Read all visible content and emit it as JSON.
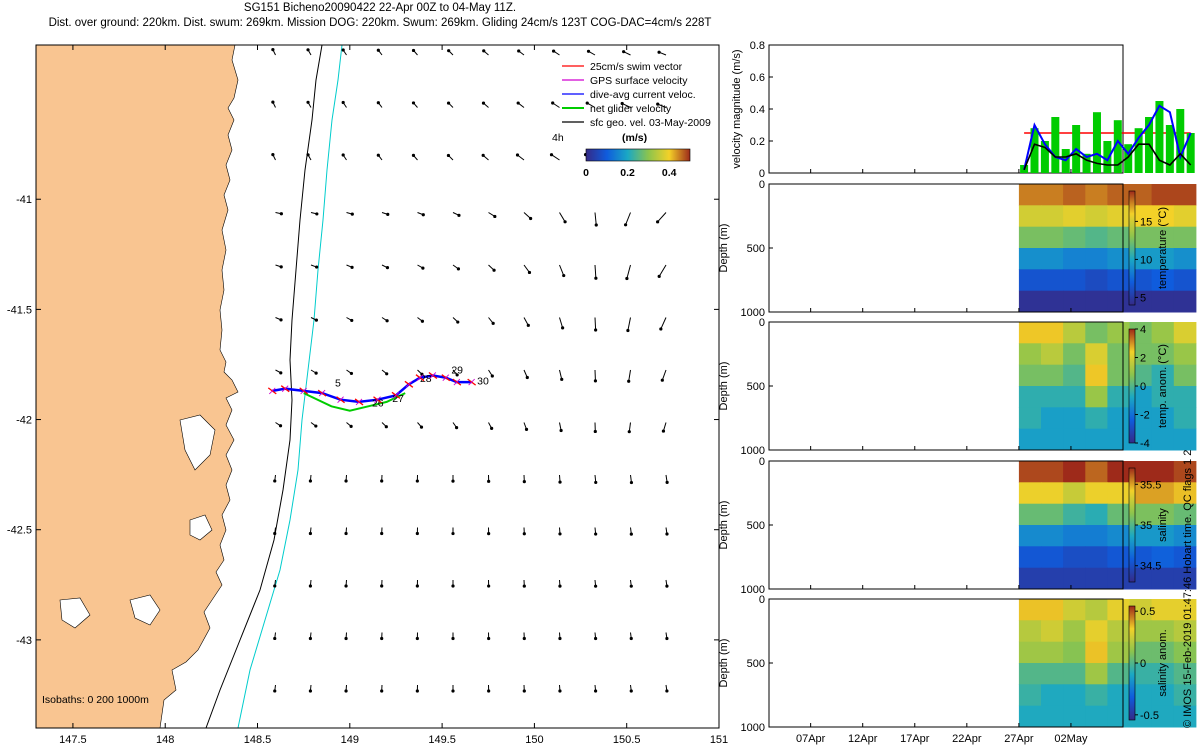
{
  "header": {
    "title": "SG151 Bicheno20090422 22-Apr 00Z to 04-May 11Z.",
    "subtitle": "Dist. over ground: 220km. Dist. swum: 269km. Mission DOG: 220km. Swum: 269km. Gliding 24cm/s 123T COG-DAC=4cm/s 228T"
  },
  "credit": "© IMOS 15-Feb-2019 01:47:46 Hobart time. QC flags 1  2",
  "colors": {
    "land": "#f9c591",
    "swim": "#ff0000",
    "gps": "#d000d0",
    "dac": "#0000ff",
    "net": "#00cc00",
    "geo": "#000000",
    "isobath_200": "#00cccc",
    "isobath_1000": "#000000"
  },
  "chart_data": [
    {
      "type": "map",
      "xlim": [
        147.3,
        151
      ],
      "ylim": [
        -43.4,
        -40.3
      ],
      "xticks": [
        "147.5",
        "148",
        "148.5",
        "149",
        "149.5",
        "150",
        "150.5",
        "151"
      ],
      "yticks": [
        "-41",
        "-41.5",
        "-42",
        "-42.5",
        "-43"
      ],
      "legend": {
        "placement": "top-right",
        "entries": [
          "25cm/s swim vector",
          "GPS surface velocity",
          "dive-avg current veloc.",
          "net glider velocity",
          "sfc geo. vel. 03-May-2009"
        ]
      },
      "colorbar": {
        "label": "(m/s)",
        "ticks": [
          "0",
          "0.2",
          "0.4"
        ],
        "range": [
          0,
          0.5
        ],
        "left_label": "4h"
      },
      "isobaths_label": "Isobaths: 0   200   1000m",
      "track": [
        [
          148.58,
          -41.87
        ],
        [
          148.65,
          -41.86
        ],
        [
          148.75,
          -41.87
        ],
        [
          148.85,
          -41.88
        ],
        [
          148.95,
          -41.91
        ],
        [
          149.05,
          -41.92
        ],
        [
          149.15,
          -41.91
        ],
        [
          149.25,
          -41.89
        ],
        [
          149.32,
          -41.84
        ],
        [
          149.38,
          -41.81
        ],
        [
          149.45,
          -41.8
        ],
        [
          149.52,
          -41.81
        ],
        [
          149.58,
          -41.83
        ],
        [
          149.66,
          -41.83
        ]
      ],
      "track_south": [
        [
          148.75,
          -41.88
        ],
        [
          148.9,
          -41.94
        ],
        [
          149.0,
          -41.96
        ],
        [
          149.1,
          -41.94
        ],
        [
          149.2,
          -41.92
        ],
        [
          149.3,
          -41.88
        ]
      ],
      "day_labels": [
        {
          "text": "5",
          "lon": 148.92,
          "lat": -41.85
        },
        {
          "text": "26",
          "lon": 149.12,
          "lat": -41.94
        },
        {
          "text": "27",
          "lon": 149.23,
          "lat": -41.92
        },
        {
          "text": "28",
          "lon": 149.38,
          "lat": -41.83
        },
        {
          "text": "29",
          "lon": 149.55,
          "lat": -41.79
        },
        {
          "text": "30",
          "lon": 149.69,
          "lat": -41.84
        }
      ]
    },
    {
      "type": "line",
      "ylabel": "velocity magnitude (m/s)",
      "ylim": [
        0,
        0.8
      ],
      "yticks": [
        "0",
        "0.2",
        "0.4",
        "0.6",
        "0.8"
      ],
      "x_days": [
        27.5,
        28.5,
        29.5,
        30.5,
        31.5,
        32.5,
        33.5,
        34.5,
        35.5,
        36.5,
        37.5,
        38.5,
        39.5,
        40.5,
        41.5,
        42.5,
        43.5
      ],
      "series": [
        {
          "role": "swim",
          "values": [
            0.25,
            0.25,
            0.25,
            0.25,
            0.25,
            0.25,
            0.25,
            0.25,
            0.25,
            0.25,
            0.25,
            0.25,
            0.25,
            0.25,
            0.25,
            0.25,
            0.25
          ]
        },
        {
          "role": "net",
          "values": [
            0.05,
            0.28,
            0.2,
            0.35,
            0.15,
            0.3,
            0.12,
            0.38,
            0.2,
            0.33,
            0.18,
            0.28,
            0.35,
            0.45,
            0.3,
            0.4,
            0.25
          ]
        },
        {
          "role": "dac",
          "values": [
            0.02,
            0.3,
            0.18,
            0.1,
            0.08,
            0.15,
            0.1,
            0.12,
            0.08,
            0.2,
            0.12,
            0.22,
            0.3,
            0.42,
            0.38,
            0.1,
            0.25
          ]
        },
        {
          "role": "geo",
          "values": [
            0.02,
            0.18,
            0.16,
            0.1,
            0.1,
            0.12,
            0.08,
            0.06,
            0.05,
            0.05,
            0.1,
            0.18,
            0.18,
            0.08,
            0.05,
            0.12,
            0.05
          ]
        }
      ]
    },
    {
      "type": "heatmap",
      "ylabel": "Depth (m)",
      "ylim": [
        1000,
        0
      ],
      "yticks": [
        "0",
        "500",
        "1000"
      ],
      "cbar_label": "temperature (°C)",
      "cbar_ticks": [
        "5",
        "10",
        "15"
      ],
      "cbar_range": [
        4,
        19
      ],
      "cmap": "parula",
      "x_range": [
        27,
        44
      ],
      "values": [
        [
          17.5,
          17.5,
          18,
          17.5,
          18,
          18,
          18.5,
          18.5
        ],
        [
          15,
          15,
          15.5,
          15,
          15.5,
          16,
          16,
          15.5
        ],
        [
          12.5,
          12.5,
          12,
          11.5,
          12,
          12.5,
          12.5,
          12.5
        ],
        [
          9,
          9,
          8.5,
          8.5,
          9,
          9.5,
          9.5,
          9
        ],
        [
          6.5,
          6.5,
          6.5,
          6,
          6.5,
          6.5,
          7,
          6.5
        ],
        [
          4.5,
          4.5,
          4.5,
          4.5,
          4.5,
          4.5,
          4.5,
          4.5
        ]
      ]
    },
    {
      "type": "heatmap",
      "ylabel": "Depth (m)",
      "ylim": [
        1000,
        0
      ],
      "yticks": [
        "0",
        "500",
        "1000"
      ],
      "cbar_label": "temp. anom. (°C)",
      "cbar_ticks": [
        "-4",
        "-2",
        "0",
        "2",
        "4"
      ],
      "cbar_range": [
        -4,
        4
      ],
      "cmap": "parula",
      "x_range": [
        27,
        44
      ],
      "values": [
        [
          2.5,
          2.5,
          1.5,
          0.5,
          1,
          0.5,
          1,
          2
        ],
        [
          1,
          1.5,
          0.5,
          2,
          0.5,
          0.5,
          0.5,
          1
        ],
        [
          0.5,
          0.5,
          0,
          2.5,
          0.5,
          0,
          -0.5,
          0.5
        ],
        [
          -0.5,
          -0.5,
          -0.5,
          1,
          -0.5,
          -1,
          -0.5,
          -0.5
        ],
        [
          -0.5,
          -1,
          -1,
          -0.5,
          -1,
          -1,
          -1,
          -0.5
        ],
        [
          -1,
          -1,
          -1,
          -1,
          -1,
          -1,
          -1,
          -1
        ]
      ]
    },
    {
      "type": "heatmap",
      "ylabel": "Depth (m)",
      "ylim": [
        1000,
        0
      ],
      "yticks": [
        "0",
        "500",
        "1000"
      ],
      "cbar_label": "salinity",
      "cbar_ticks": [
        "34.5",
        "35",
        "35.5"
      ],
      "cbar_range": [
        34.3,
        35.7
      ],
      "cmap": "parula",
      "x_range": [
        27,
        44
      ],
      "values": [
        [
          35.65,
          35.65,
          35.7,
          35.6,
          35.7,
          35.7,
          35.7,
          35.65
        ],
        [
          35.4,
          35.4,
          35.3,
          35.4,
          35.4,
          35.5,
          35.5,
          35.45
        ],
        [
          35.05,
          35.05,
          34.95,
          34.9,
          35.05,
          35.1,
          35.1,
          35.05
        ],
        [
          34.75,
          34.75,
          34.7,
          34.7,
          34.75,
          34.8,
          34.8,
          34.75
        ],
        [
          34.55,
          34.55,
          34.5,
          34.5,
          34.55,
          34.55,
          34.6,
          34.55
        ],
        [
          34.42,
          34.42,
          34.42,
          34.42,
          34.42,
          34.42,
          34.42,
          34.42
        ]
      ]
    },
    {
      "type": "heatmap",
      "ylabel": "Depth (m)",
      "ylim": [
        1000,
        0
      ],
      "yticks": [
        "0",
        "500",
        "1000"
      ],
      "cbar_label": "salinity anom.",
      "cbar_ticks": [
        "-0.5",
        "0",
        "0.5"
      ],
      "cbar_range": [
        -0.55,
        0.55
      ],
      "cmap": "parula",
      "x_range": [
        27,
        44
      ],
      "xticks": [
        {
          "day": 7,
          "label": "07Apr"
        },
        {
          "day": 12,
          "label": "12Apr"
        },
        {
          "day": 17,
          "label": "17Apr"
        },
        {
          "day": 22,
          "label": "22Apr"
        },
        {
          "day": 27,
          "label": "27Apr"
        },
        {
          "day": 32,
          "label": "02May"
        }
      ],
      "x_window": [
        3,
        37
      ],
      "values": [
        [
          0.35,
          0.35,
          0.25,
          0.2,
          0.3,
          0.25,
          0.3,
          0.3
        ],
        [
          0.2,
          0.25,
          0.15,
          0.3,
          0.2,
          0.15,
          0.15,
          0.2
        ],
        [
          0.15,
          0.15,
          0.1,
          0.35,
          0.15,
          0.05,
          0.05,
          0.1
        ],
        [
          0,
          0,
          0,
          0.15,
          0,
          -0.05,
          -0.05,
          0
        ],
        [
          -0.05,
          -0.1,
          -0.1,
          -0.05,
          -0.1,
          -0.1,
          -0.1,
          -0.05
        ],
        [
          -0.1,
          -0.1,
          -0.1,
          -0.1,
          -0.1,
          -0.1,
          -0.1,
          -0.1
        ]
      ]
    }
  ]
}
